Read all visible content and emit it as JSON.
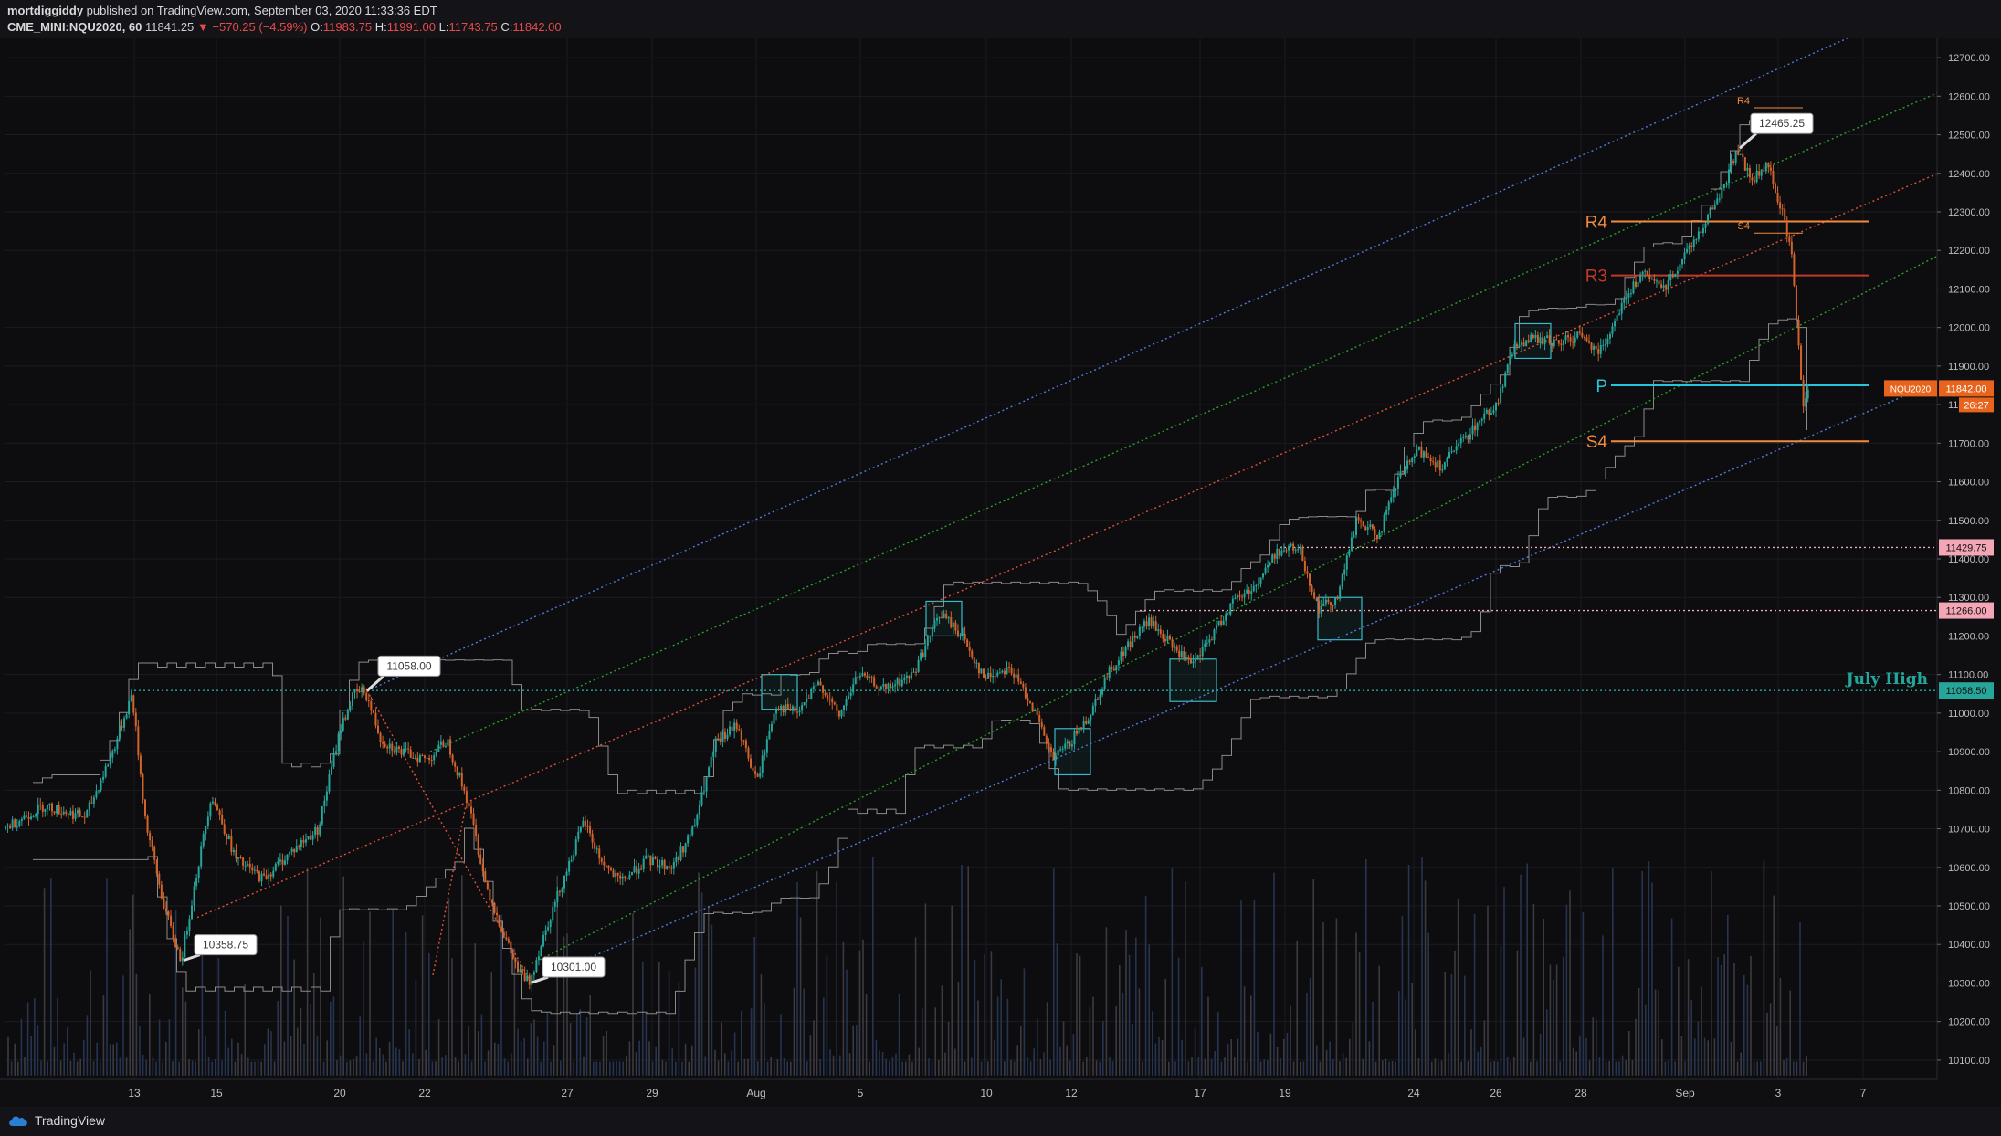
{
  "header": {
    "author": "mortdiggiddy",
    "published": "published on TradingView.com, September 03, 2020 11:33:36 EDT",
    "symbol": "CME_MINI:NQU2020, 60",
    "last": "11841.25",
    "change": "−570.25 (−4.59%)",
    "o_label": "O:",
    "o_value": "11983.75",
    "h_label": "H:",
    "h_value": "11991.00",
    "l_label": "L:",
    "l_value": "11743.75",
    "c_label": "C:",
    "c_value": "11842.00"
  },
  "footer": {
    "brand": "TradingView"
  },
  "colors": {
    "background": "#0d0d0f",
    "up": "#26a69a",
    "down": "#d2632b",
    "blue_channel": "#4f7bd9",
    "green_channel": "#2aa02a",
    "red_channel": "#e0503a",
    "pivot_orange": "#f08a3e",
    "july_high": "#26a69a",
    "level_pink": "#f3a6b5",
    "envelope": "#8a8a8a"
  },
  "chart_data": {
    "type": "candlestick",
    "symbol": "NQU2020",
    "interval": "60",
    "ylim": [
      10050,
      12750
    ],
    "y_ticks": [
      10100,
      10200,
      10300,
      10400,
      10500,
      10600,
      10700,
      10800,
      10900,
      11000,
      11100,
      11200,
      11300,
      11400,
      11500,
      11600,
      11700,
      11800,
      11900,
      12000,
      12100,
      12200,
      12300,
      12400,
      12500,
      12600,
      12700
    ],
    "x_ticks": [
      {
        "label": "13",
        "t": 4.7
      },
      {
        "label": "15",
        "t": 7.7
      },
      {
        "label": "20",
        "t": 12.2
      },
      {
        "label": "22",
        "t": 15.3
      },
      {
        "label": "27",
        "t": 20.5
      },
      {
        "label": "29",
        "t": 23.6
      },
      {
        "label": "Aug",
        "t": 27.4
      },
      {
        "label": "5",
        "t": 31.2
      },
      {
        "label": "10",
        "t": 35.8
      },
      {
        "label": "12",
        "t": 38.9
      },
      {
        "label": "17",
        "t": 43.6
      },
      {
        "label": "19",
        "t": 46.7
      },
      {
        "label": "24",
        "t": 51.4
      },
      {
        "label": "26",
        "t": 54.4
      },
      {
        "label": "28",
        "t": 57.5
      },
      {
        "label": "Sep",
        "t": 61.3
      },
      {
        "label": "3",
        "t": 64.7
      },
      {
        "label": "7",
        "t": 67.8
      }
    ],
    "price_path": [
      [
        0,
        10700
      ],
      [
        1.5,
        10760
      ],
      [
        3,
        10730
      ],
      [
        4,
        10900
      ],
      [
        4.7,
        11050
      ],
      [
        5.2,
        10720
      ],
      [
        5.8,
        10520
      ],
      [
        6.2,
        10420
      ],
      [
        6.5,
        10359
      ],
      [
        7,
        10560
      ],
      [
        7.6,
        10790
      ],
      [
        8.5,
        10620
      ],
      [
        9.5,
        10570
      ],
      [
        10.5,
        10640
      ],
      [
        11.5,
        10700
      ],
      [
        12.3,
        10960
      ],
      [
        12.8,
        11050
      ],
      [
        13.2,
        11058
      ],
      [
        13.8,
        10930
      ],
      [
        14.5,
        10900
      ],
      [
        15.5,
        10880
      ],
      [
        16.2,
        10930
      ],
      [
        17,
        10760
      ],
      [
        17.6,
        10560
      ],
      [
        18.3,
        10420
      ],
      [
        18.8,
        10330
      ],
      [
        19.2,
        10301
      ],
      [
        19.8,
        10440
      ],
      [
        20.4,
        10560
      ],
      [
        21.2,
        10720
      ],
      [
        21.8,
        10620
      ],
      [
        22.5,
        10560
      ],
      [
        23.5,
        10620
      ],
      [
        24.4,
        10600
      ],
      [
        25.2,
        10700
      ],
      [
        26,
        10920
      ],
      [
        26.8,
        10970
      ],
      [
        27.5,
        10820
      ],
      [
        28.2,
        11020
      ],
      [
        29,
        11000
      ],
      [
        29.8,
        11080
      ],
      [
        30.5,
        10990
      ],
      [
        31.2,
        11100
      ],
      [
        32.2,
        11060
      ],
      [
        33.2,
        11100
      ],
      [
        34.2,
        11260
      ],
      [
        35,
        11200
      ],
      [
        35.8,
        11090
      ],
      [
        36.7,
        11120
      ],
      [
        37.5,
        11030
      ],
      [
        38.3,
        10880
      ],
      [
        38.9,
        10920
      ],
      [
        39.6,
        10990
      ],
      [
        40.3,
        11100
      ],
      [
        41.1,
        11180
      ],
      [
        41.8,
        11240
      ],
      [
        42.6,
        11180
      ],
      [
        43.4,
        11120
      ],
      [
        44.2,
        11210
      ],
      [
        44.9,
        11290
      ],
      [
        45.7,
        11330
      ],
      [
        46.5,
        11420
      ],
      [
        47.3,
        11430
      ],
      [
        48,
        11270
      ],
      [
        48.7,
        11300
      ],
      [
        49.4,
        11500
      ],
      [
        50.2,
        11460
      ],
      [
        51,
        11620
      ],
      [
        51.7,
        11680
      ],
      [
        52.5,
        11640
      ],
      [
        53.2,
        11700
      ],
      [
        53.9,
        11760
      ],
      [
        54.5,
        11800
      ],
      [
        55.2,
        11960
      ],
      [
        56,
        11970
      ],
      [
        56.8,
        11960
      ],
      [
        57.5,
        11980
      ],
      [
        58.3,
        11940
      ],
      [
        59,
        12050
      ],
      [
        59.8,
        12140
      ],
      [
        60.6,
        12100
      ],
      [
        61.3,
        12180
      ],
      [
        62,
        12260
      ],
      [
        62.7,
        12350
      ],
      [
        63.3,
        12465
      ],
      [
        63.8,
        12380
      ],
      [
        64.4,
        12420
      ],
      [
        64.9,
        12310
      ],
      [
        65.3,
        12180
      ],
      [
        65.5,
        11980
      ],
      [
        65.7,
        11800
      ],
      [
        65.85,
        11842
      ]
    ],
    "swing_labels": [
      {
        "text": "10358.75",
        "t": 6.5,
        "y": 10358.75,
        "dir": "down"
      },
      {
        "text": "11058.00",
        "t": 13.2,
        "y": 11058.0,
        "dir": "up"
      },
      {
        "text": "10301.00",
        "t": 19.2,
        "y": 10301.0,
        "dir": "down"
      },
      {
        "text": "12465.25",
        "t": 63.3,
        "y": 12465.25,
        "dir": "up"
      }
    ],
    "channels": [
      {
        "color": "blue",
        "t1": 13.2,
        "y1": 11058,
        "t2": 68.5,
        "y2": 12790
      },
      {
        "color": "green",
        "t1": 15.5,
        "y1": 10900,
        "t2": 71.2,
        "y2": 12630
      },
      {
        "color": "red",
        "t1": 7,
        "y1": 10470,
        "t2": 71.2,
        "y2": 12420
      },
      {
        "color": "green",
        "t1": 19.2,
        "y1": 10350,
        "t2": 71.2,
        "y2": 12210
      },
      {
        "color": "blue",
        "t1": 19.2,
        "y1": 10301,
        "t2": 71.2,
        "y2": 11880
      }
    ],
    "fork_lines": [
      {
        "t1": 13.2,
        "y1": 11058,
        "t2": 19.2,
        "y2": 10301
      },
      {
        "t1": 15.6,
        "y1": 10320,
        "t2": 16.8,
        "y2": 10760
      }
    ],
    "pivot_levels": [
      {
        "label": "R4",
        "y": 12275,
        "t1": 58.6,
        "t2": 68,
        "color": "#f08a3e"
      },
      {
        "label": "R3",
        "y": 12135,
        "t1": 58.6,
        "t2": 68,
        "color": "#c0392b"
      },
      {
        "label": "P",
        "y": 11850,
        "t1": 58.6,
        "t2": 68,
        "color": "#26c6da"
      },
      {
        "label": "S4",
        "y": 11705,
        "t1": 58.6,
        "t2": 68,
        "color": "#f08a3e"
      },
      {
        "label": "R4",
        "y": 12570,
        "t1": 63.8,
        "t2": 65.6,
        "color": "#f08a3e"
      },
      {
        "label": "S4",
        "y": 12245,
        "t1": 63.8,
        "t2": 65.6,
        "color": "#f08a3e"
      }
    ],
    "horizontal_levels": [
      {
        "label": "11429.75",
        "y": 11429.75,
        "t1": 46.5,
        "color": "#f3a6b5"
      },
      {
        "label": "11266.00",
        "y": 11266.0,
        "t1": 41.4,
        "color": "#f3a6b5"
      },
      {
        "label": "11058.50",
        "y": 11058.5,
        "t1": 4.7,
        "color": "#26a69a",
        "annotation": "July High"
      }
    ],
    "boxes": [
      {
        "t1": 27.6,
        "y1": 11010,
        "t2": 28.9,
        "y2": 11100
      },
      {
        "t1": 33.6,
        "y1": 11200,
        "t2": 34.9,
        "y2": 11290
      },
      {
        "t1": 38.3,
        "y1": 10840,
        "t2": 39.6,
        "y2": 10960
      },
      {
        "t1": 42.5,
        "y1": 11030,
        "t2": 44.2,
        "y2": 11140
      },
      {
        "t1": 47.9,
        "y1": 11190,
        "t2": 49.5,
        "y2": 11300
      },
      {
        "t1": 55.1,
        "y1": 11920,
        "t2": 56.4,
        "y2": 12010
      }
    ],
    "last_price": {
      "symbol": "NQU2020",
      "value": "11842.00",
      "countdown": "26:27"
    },
    "grid": true
  }
}
